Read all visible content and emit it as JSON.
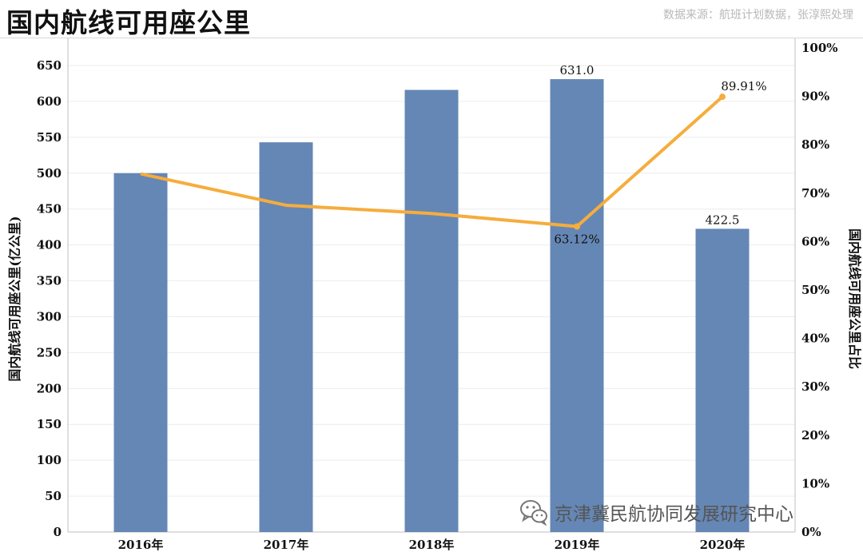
{
  "header": {
    "title": "国内航线可用座公里",
    "source": "数据来源：航班计划数据，张淳熙处理"
  },
  "watermark": {
    "text": "京津冀民航协同发展研究中心",
    "icon": "wechat-icon"
  },
  "colors": {
    "bar": "#6587b5",
    "line": "#f5ad3d",
    "grid": "#ececec",
    "axis": "#bfbfbf"
  },
  "chart_data": {
    "type": "bar",
    "categories": [
      "2016年",
      "2017年",
      "2018年",
      "2019年",
      "2020年"
    ],
    "series": [
      {
        "type": "bar",
        "axis": "left",
        "values": [
          500.0,
          543.0,
          616.0,
          631.0,
          422.5
        ]
      },
      {
        "type": "line",
        "axis": "right",
        "values": [
          74.0,
          67.5,
          65.8,
          63.12,
          89.91
        ]
      }
    ],
    "data_labels": [
      {
        "series": 0,
        "index": 3,
        "text": "631.0"
      },
      {
        "series": 0,
        "index": 4,
        "text": "422.5"
      },
      {
        "series": 1,
        "index": 3,
        "text": "63.12%"
      },
      {
        "series": 1,
        "index": 4,
        "text": "89.91%"
      }
    ],
    "ylabel_left": "国内航线可用座公里(亿公里)",
    "ylabel_right": "国内航线可用座公里占比",
    "ylim_left": [
      0,
      650
    ],
    "yticks_left": [
      "0",
      "50",
      "100",
      "150",
      "200",
      "250",
      "300",
      "350",
      "400",
      "450",
      "500",
      "550",
      "600",
      "650"
    ],
    "ylim_right": [
      0,
      100
    ],
    "yticks_right": [
      "0%",
      "10%",
      "20%",
      "30%",
      "40%",
      "50%",
      "60%",
      "70%",
      "80%",
      "90%",
      "100%"
    ],
    "grid": true,
    "legend": "none"
  }
}
